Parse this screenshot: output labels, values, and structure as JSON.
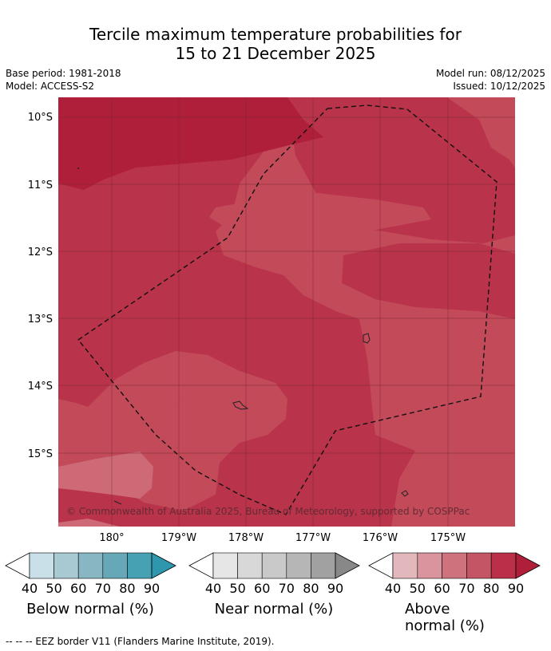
{
  "title_line1": "Tercile maximum temperature probabilities for",
  "title_line2": "15 to 21 December 2025",
  "meta": {
    "base_period": "Base period: 1981-2018",
    "model": "Model: ACCESS-S2",
    "model_run": "Model run: 08/12/2025",
    "issued": "Issued: 10/12/2025"
  },
  "map": {
    "lat_labels": [
      "10°S",
      "11°S",
      "12°S",
      "13°S",
      "14°S",
      "15°S"
    ],
    "lon_labels": [
      "180°",
      "179°W",
      "178°W",
      "177°W",
      "176°W",
      "175°W"
    ],
    "lat_range": [
      -16.1,
      -9.7
    ],
    "lon_range": [
      179.2,
      -174.0
    ],
    "copyright": "© Commonwealth of Australia 2025, Bureau of Meteorology, supported by COSPPac",
    "colors": {
      "p60_70": "#cd6a76",
      "p70_80": "#c24a59",
      "p80_90": "#b9334a",
      "p90": "#af1f3a"
    }
  },
  "colorbars": [
    {
      "name": "below",
      "label": "Below normal (%)",
      "ticks": [
        "40",
        "50",
        "60",
        "70",
        "80",
        "90"
      ],
      "colors": [
        "#ffffff",
        "#c9e0e8",
        "#a9c9d2",
        "#88b6c3",
        "#67a8b8",
        "#46a1b3",
        "#2e96ad"
      ]
    },
    {
      "name": "near",
      "label": "Near normal (%)",
      "ticks": [
        "40",
        "50",
        "60",
        "70",
        "80",
        "90"
      ],
      "colors": [
        "#ffffff",
        "#e6e6e6",
        "#d8d8d8",
        "#c9c9c9",
        "#b6b6b6",
        "#a1a1a1",
        "#888888"
      ]
    },
    {
      "name": "above",
      "label": "Above normal (%)",
      "ticks": [
        "40",
        "50",
        "60",
        "70",
        "80",
        "90"
      ],
      "colors": [
        "#ffffff",
        "#e3b8bd",
        "#d9949d",
        "#ce727d",
        "#c45565",
        "#bb3049",
        "#af1f3a"
      ]
    }
  ],
  "footer": "--  --  -- EEZ border V11 (Flanders Marine Institute, 2019)."
}
